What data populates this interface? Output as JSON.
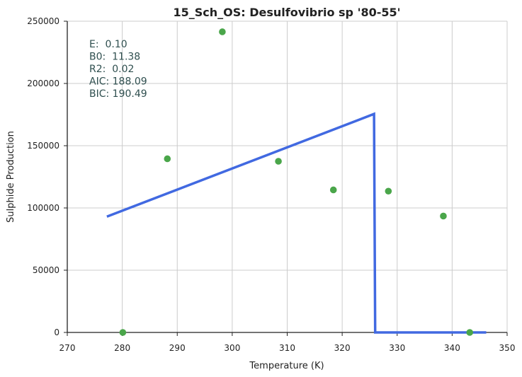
{
  "chart_data": {
    "type": "scatter",
    "title": "15_Sch_OS: Desulfovibrio sp '80-55'",
    "xlabel": "Temperature (K)",
    "ylabel": "Sulphide Production",
    "xlim": [
      270,
      350
    ],
    "ylim": [
      0,
      250000
    ],
    "xticks": [
      "270",
      "280",
      "290",
      "300",
      "310",
      "320",
      "330",
      "340",
      "350"
    ],
    "yticks": [
      "0",
      "50000",
      "100000",
      "150000",
      "200000",
      "250000"
    ],
    "grid": true,
    "series": [
      {
        "kind": "points",
        "color": "#4aa64a",
        "points": [
          {
            "x": 280.1,
            "y": 0
          },
          {
            "x": 288.2,
            "y": 139500
          },
          {
            "x": 298.2,
            "y": 241500
          },
          {
            "x": 308.4,
            "y": 137500
          },
          {
            "x": 318.4,
            "y": 114500
          },
          {
            "x": 328.4,
            "y": 113500
          },
          {
            "x": 338.4,
            "y": 93500
          },
          {
            "x": 343.2,
            "y": 0
          }
        ]
      },
      {
        "kind": "line",
        "color": "#4169e1",
        "points": [
          {
            "x": 277.2,
            "y": 93000
          },
          {
            "x": 325.8,
            "y": 175500
          },
          {
            "x": 326.0,
            "y": 0
          },
          {
            "x": 346.2,
            "y": 0
          }
        ]
      }
    ],
    "annotation": {
      "color": "#2f4f4f",
      "lines": [
        "E:  0.10",
        "B0:  11.38",
        "R2:  0.02",
        "AIC: 188.09",
        "BIC: 190.49"
      ]
    }
  }
}
